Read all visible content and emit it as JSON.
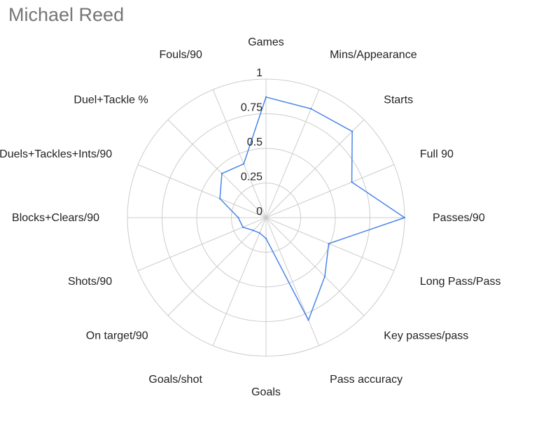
{
  "chart_data": {
    "type": "radar",
    "title": "Michael Reed",
    "axes": [
      "Games",
      "Mins/Appearance",
      "Starts",
      "Full 90",
      "Passes/90",
      "Long Pass/Pass",
      "Key passes/pass",
      "Pass accuracy",
      "Goals",
      "Goals/shot",
      "On target/90",
      "Shots/90",
      "Blocks+Clears/90",
      "Duels+Tackles+Ints/90",
      "Duel+Tackle %",
      "Fouls/90"
    ],
    "ticks": [
      "0",
      "0.25",
      "0.5",
      "0.75",
      "1"
    ],
    "rlim": [
      0,
      1
    ],
    "grid": true,
    "series": [
      {
        "color": "#4a86e8",
        "values": [
          0.87,
          0.85,
          0.88,
          0.67,
          1.0,
          0.49,
          0.6,
          0.8,
          0.15,
          0.12,
          0.13,
          0.18,
          0.2,
          0.36,
          0.45,
          0.42
        ]
      }
    ]
  },
  "colors": {
    "title": "#757575",
    "grid": "#cccccc",
    "series": "#4a86e8"
  }
}
